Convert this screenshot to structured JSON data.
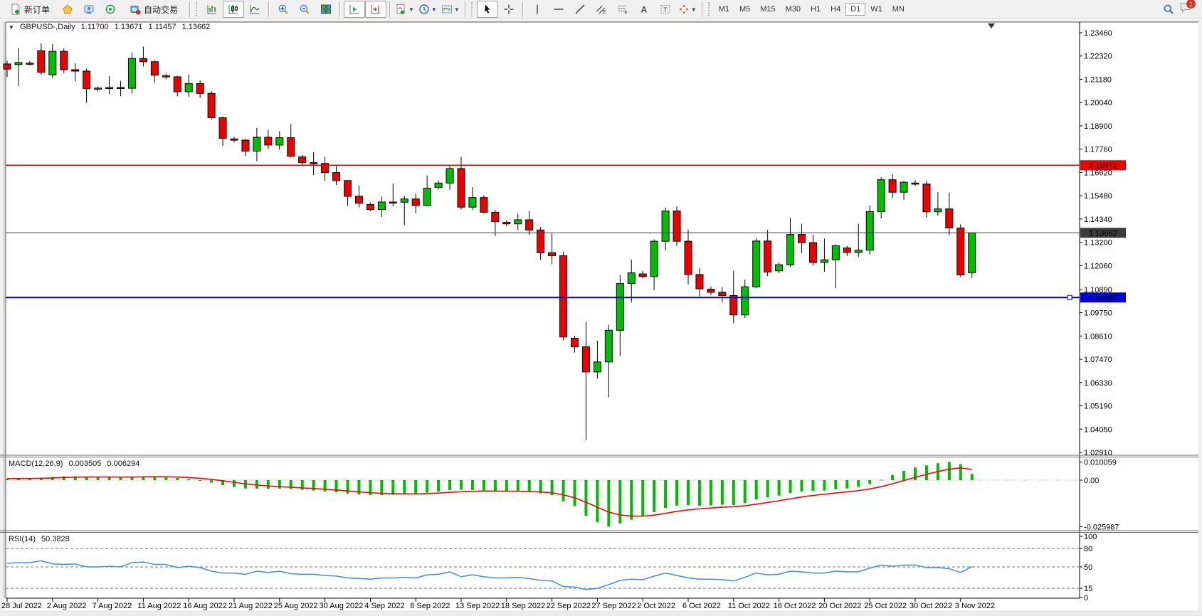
{
  "toolbar": {
    "new_order_label": "新订单",
    "autotrading_label": "自动交易",
    "timeframes": [
      "M1",
      "M5",
      "M15",
      "M30",
      "H1",
      "H4",
      "D1",
      "W1",
      "MN"
    ],
    "active_timeframe": "D1",
    "notification_badge": "1"
  },
  "chart": {
    "info_line": {
      "symbol": "GBPUSD-,Daily",
      "open": "1.11700",
      "high": "1.13671",
      "low": "1.11457",
      "close": "1.13662"
    },
    "price_axis_labels": [
      "1.23460",
      "1.22320",
      "1.21180",
      "1.20040",
      "1.18900",
      "1.17760",
      "1.16620",
      "1.15480",
      "1.14340",
      "1.13200",
      "1.12060",
      "1.10890",
      "1.09750",
      "1.08610",
      "1.07470",
      "1.06330",
      "1.05190",
      "1.04050",
      "1.02910"
    ],
    "hlines": [
      {
        "name": "resistance-line",
        "value": 1.16972,
        "label": "1.16972",
        "color": "#ee0000",
        "width": 1.6,
        "handle": false
      },
      {
        "name": "current-price-line",
        "value": 1.13662,
        "label": "1.13662",
        "color": "#3c3c3c",
        "width": 1,
        "handle": false
      },
      {
        "name": "support-line",
        "value": 1.10495,
        "label": "1.10495",
        "color": "#0000dd",
        "width": 2,
        "handle": true
      }
    ],
    "date_labels": [
      "28 Jul 2022",
      "2 Aug 2022",
      "7 Aug 2022",
      "11 Aug 2022",
      "16 Aug 2022",
      "21 Aug 2022",
      "25 Aug 2022",
      "30 Aug 2022",
      "4 Sep 2022",
      "8 Sep 2022",
      "13 Sep 2022",
      "18 Sep 2022",
      "22 Sep 2022",
      "27 Sep 2022",
      "2 Oct 2022",
      "6 Oct 2022",
      "11 Oct 2022",
      "16 Oct 2022",
      "20 Oct 2022",
      "25 Oct 2022",
      "30 Oct 2022",
      "3 Nov 2022"
    ]
  },
  "macd": {
    "label": "MACD(12,26,9)",
    "values": [
      "0.003505",
      "0.006294"
    ],
    "axis_labels": [
      {
        "text": "0.010059",
        "value": 0.010059
      },
      {
        "text": "0.00",
        "value": 0
      },
      {
        "text": "-0.025987",
        "value": -0.025987
      }
    ]
  },
  "rsi": {
    "label": "RSI(14)",
    "value": "50.3828",
    "axis_labels": [
      {
        "text": "100",
        "value": 100
      },
      {
        "text": "80",
        "value": 80
      },
      {
        "text": "50",
        "value": 50
      },
      {
        "text": "15",
        "value": 15
      },
      {
        "text": "0",
        "value": 0
      }
    ],
    "dashed_levels": [
      80,
      50,
      15
    ]
  },
  "chart_data": [
    {
      "type": "candlestick",
      "title": "GBPUSD Daily",
      "ylim": [
        1.0291,
        1.2346
      ],
      "up_color": "#00bf00",
      "down_color": "#ef0000",
      "wick_color": "#000000",
      "ohlc": [
        [
          1.2193,
          1.2209,
          1.213,
          1.2168
        ],
        [
          1.219,
          1.227,
          1.2085,
          1.22
        ],
        [
          1.2197,
          1.2208,
          1.2186,
          1.2193
        ],
        [
          1.2258,
          1.2293,
          1.214,
          1.2152
        ],
        [
          1.214,
          1.229,
          1.2125,
          1.2255
        ],
        [
          1.2255,
          1.227,
          1.2148,
          1.2165
        ],
        [
          1.2165,
          1.2196,
          1.2107,
          1.2158
        ],
        [
          1.2158,
          1.217,
          1.2003,
          1.2073
        ],
        [
          1.207,
          1.2082,
          1.2058,
          1.2075
        ],
        [
          1.2075,
          1.2133,
          1.2045,
          1.2078
        ],
        [
          1.2078,
          1.211,
          1.2035,
          1.2074
        ],
        [
          1.2074,
          1.2249,
          1.2048,
          1.222
        ],
        [
          1.222,
          1.2278,
          1.2181,
          1.2204
        ],
        [
          1.2204,
          1.2211,
          1.21,
          1.2138
        ],
        [
          1.2135,
          1.2145,
          1.2118,
          1.213
        ],
        [
          1.213,
          1.2135,
          1.2035,
          1.2057
        ],
        [
          1.2057,
          1.2142,
          1.2031,
          1.2097
        ],
        [
          1.2097,
          1.2112,
          1.2026,
          1.2049
        ],
        [
          1.2049,
          1.206,
          1.1921,
          1.193
        ],
        [
          1.193,
          1.1936,
          1.1792,
          1.1829
        ],
        [
          1.1826,
          1.1836,
          1.1808,
          1.182
        ],
        [
          1.182,
          1.1827,
          1.1742,
          1.1766
        ],
        [
          1.1766,
          1.188,
          1.1717,
          1.1834
        ],
        [
          1.1834,
          1.187,
          1.1775,
          1.1796
        ],
        [
          1.1796,
          1.1864,
          1.1772,
          1.1832
        ],
        [
          1.1832,
          1.19,
          1.1735,
          1.1741
        ],
        [
          1.1738,
          1.1748,
          1.17,
          1.171
        ],
        [
          1.171,
          1.176,
          1.1649,
          1.1706
        ],
        [
          1.1706,
          1.1738,
          1.1621,
          1.1661
        ],
        [
          1.1661,
          1.1696,
          1.16,
          1.1622
        ],
        [
          1.1622,
          1.1625,
          1.1498,
          1.1545
        ],
        [
          1.1545,
          1.1598,
          1.149,
          1.1511
        ],
        [
          1.1505,
          1.1515,
          1.1472,
          1.148
        ],
        [
          1.148,
          1.1543,
          1.1444,
          1.1517
        ],
        [
          1.1517,
          1.1608,
          1.1495,
          1.1516
        ],
        [
          1.1516,
          1.1547,
          1.1404,
          1.1532
        ],
        [
          1.1532,
          1.1557,
          1.1462,
          1.15
        ],
        [
          1.15,
          1.1647,
          1.1497,
          1.1585
        ],
        [
          1.1588,
          1.1622,
          1.1578,
          1.161
        ],
        [
          1.161,
          1.1699,
          1.1577,
          1.1681
        ],
        [
          1.1681,
          1.1738,
          1.148,
          1.1492
        ],
        [
          1.1492,
          1.159,
          1.1478,
          1.1539
        ],
        [
          1.1539,
          1.155,
          1.146,
          1.1467
        ],
        [
          1.1467,
          1.1478,
          1.1351,
          1.1421
        ],
        [
          1.1418,
          1.1428,
          1.1398,
          1.141
        ],
        [
          1.141,
          1.146,
          1.138,
          1.143
        ],
        [
          1.143,
          1.1474,
          1.1356,
          1.138
        ],
        [
          1.138,
          1.1394,
          1.1233,
          1.1269
        ],
        [
          1.1269,
          1.1363,
          1.1212,
          1.1254
        ],
        [
          1.1254,
          1.1274,
          1.0839,
          1.0856
        ],
        [
          1.085,
          1.0862,
          1.078,
          1.0808
        ],
        [
          1.0808,
          1.093,
          1.035,
          1.0685
        ],
        [
          1.0685,
          1.0838,
          1.0653,
          1.0734
        ],
        [
          1.0734,
          1.0916,
          1.056,
          1.0889
        ],
        [
          1.0889,
          1.116,
          1.0763,
          1.1118
        ],
        [
          1.1118,
          1.1235,
          1.1025,
          1.117
        ],
        [
          1.1165,
          1.118,
          1.1142,
          1.1152
        ],
        [
          1.1152,
          1.1334,
          1.1085,
          1.1325
        ],
        [
          1.1325,
          1.149,
          1.128,
          1.1473
        ],
        [
          1.1473,
          1.1495,
          1.1302,
          1.1325
        ],
        [
          1.1325,
          1.1382,
          1.1113,
          1.1162
        ],
        [
          1.1162,
          1.1195,
          1.1055,
          1.1092
        ],
        [
          1.109,
          1.1102,
          1.1062,
          1.1075
        ],
        [
          1.1075,
          1.11,
          1.1027,
          1.1059
        ],
        [
          1.1059,
          1.118,
          1.0923,
          1.0964
        ],
        [
          1.0964,
          1.1137,
          1.0949,
          1.1102
        ],
        [
          1.1102,
          1.1339,
          1.1095,
          1.1326
        ],
        [
          1.1326,
          1.138,
          1.1154,
          1.1174
        ],
        [
          1.118,
          1.1222,
          1.1168,
          1.121
        ],
        [
          1.121,
          1.144,
          1.12,
          1.1358
        ],
        [
          1.1358,
          1.141,
          1.1267,
          1.1318
        ],
        [
          1.1318,
          1.1357,
          1.1205,
          1.1221
        ],
        [
          1.1221,
          1.1338,
          1.1176,
          1.1234
        ],
        [
          1.1234,
          1.131,
          1.1095,
          1.1303
        ],
        [
          1.1292,
          1.1302,
          1.1252,
          1.127
        ],
        [
          1.127,
          1.141,
          1.1248,
          1.1281
        ],
        [
          1.1281,
          1.15,
          1.126,
          1.147
        ],
        [
          1.147,
          1.1638,
          1.1437,
          1.1626
        ],
        [
          1.1626,
          1.1655,
          1.1537,
          1.1565
        ],
        [
          1.1565,
          1.162,
          1.1528,
          1.1614
        ],
        [
          1.161,
          1.1625,
          1.1595,
          1.1605
        ],
        [
          1.1605,
          1.162,
          1.144,
          1.1469
        ],
        [
          1.1469,
          1.1565,
          1.145,
          1.1483
        ],
        [
          1.1483,
          1.1564,
          1.1355,
          1.139
        ],
        [
          1.139,
          1.1408,
          1.115,
          1.116
        ],
        [
          1.117,
          1.13671,
          1.11457,
          1.13662
        ]
      ]
    },
    {
      "type": "bar",
      "title": "MACD(12,26,9)",
      "color": "#00bd00",
      "signal_color": "#ff0000",
      "signal_smoothing": 0.25,
      "ylim": [
        -0.026,
        0.0105
      ],
      "values": [
        0.0008,
        0.001,
        0.0011,
        0.0014,
        0.0018,
        0.0021,
        0.0022,
        0.002,
        0.0019,
        0.0017,
        0.0015,
        0.0018,
        0.0022,
        0.0021,
        0.0018,
        0.0012,
        0.0006,
        -0.0002,
        -0.0014,
        -0.0028,
        -0.0038,
        -0.0046,
        -0.0047,
        -0.0048,
        -0.0047,
        -0.005,
        -0.0054,
        -0.0058,
        -0.0063,
        -0.0068,
        -0.0075,
        -0.008,
        -0.0084,
        -0.0084,
        -0.0082,
        -0.008,
        -0.0077,
        -0.007,
        -0.0063,
        -0.0056,
        -0.0054,
        -0.0055,
        -0.0057,
        -0.0061,
        -0.0063,
        -0.0064,
        -0.0066,
        -0.0074,
        -0.0084,
        -0.0118,
        -0.0145,
        -0.0198,
        -0.0235,
        -0.0259,
        -0.0242,
        -0.022,
        -0.0201,
        -0.0178,
        -0.0155,
        -0.0142,
        -0.014,
        -0.0143,
        -0.0141,
        -0.0137,
        -0.0139,
        -0.0128,
        -0.0108,
        -0.0096,
        -0.0086,
        -0.0072,
        -0.0063,
        -0.006,
        -0.0058,
        -0.0051,
        -0.0046,
        -0.0038,
        -0.0022,
        0.0002,
        0.0028,
        0.0052,
        0.007,
        0.0082,
        0.0094,
        0.0101,
        0.0089,
        0.0035
      ]
    },
    {
      "type": "line",
      "title": "RSI(14)",
      "color": "#3e8ede",
      "ylim": [
        0,
        100
      ],
      "values": [
        56,
        57,
        57,
        60,
        55,
        54,
        55,
        50,
        50,
        51,
        50,
        57,
        58,
        54,
        54,
        49,
        51,
        49,
        43,
        40,
        40,
        38,
        43,
        41,
        43,
        39,
        38,
        38,
        36,
        35,
        32,
        31,
        30,
        32,
        32,
        33,
        32,
        37,
        38,
        42,
        34,
        37,
        34,
        32,
        32,
        33,
        31,
        28,
        27,
        18,
        17,
        13,
        15,
        21,
        28,
        30,
        29,
        35,
        40,
        36,
        32,
        30,
        30,
        29,
        27,
        33,
        40,
        37,
        38,
        43,
        42,
        40,
        40,
        43,
        42,
        42,
        48,
        53,
        51,
        53,
        53,
        49,
        49,
        47,
        41,
        50.38
      ]
    }
  ]
}
